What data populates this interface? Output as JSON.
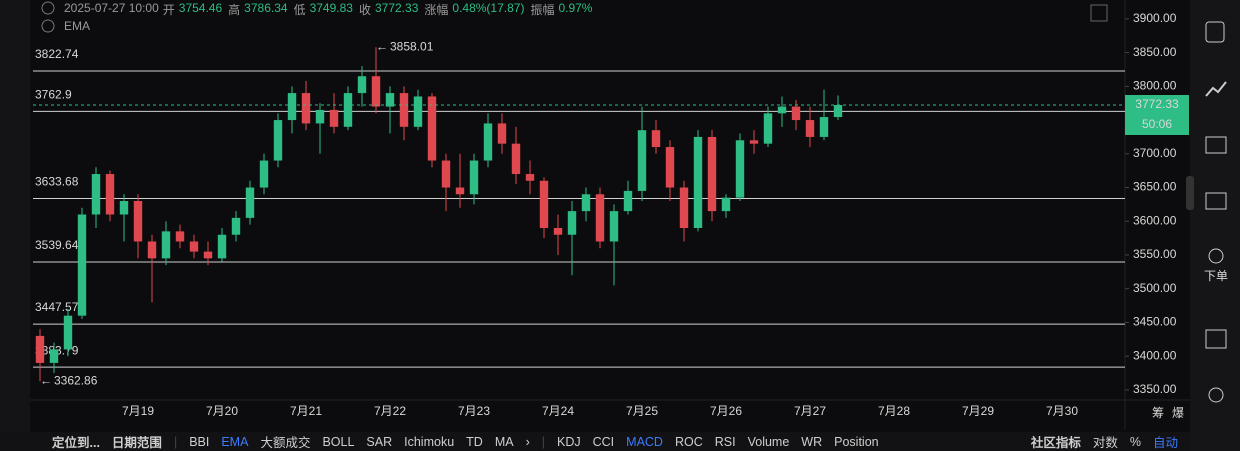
{
  "header": {
    "time": "2025-07-27 10:00",
    "stats": [
      {
        "label": "开",
        "value": 3754.46
      },
      {
        "label": "高",
        "value": 3786.34
      },
      {
        "label": "低",
        "value": 3749.83
      },
      {
        "label": "收",
        "value": 3772.33
      },
      {
        "label": "涨幅",
        "value": "0.48%(17.87)"
      },
      {
        "label": "振幅",
        "value": "0.97%"
      }
    ],
    "indicator": "EMA"
  },
  "chart_data": {
    "type": "candlestick",
    "categories": [
      null,
      null,
      null,
      null,
      null,
      null,
      null,
      "7月19",
      null,
      null,
      null,
      null,
      null,
      "7月20",
      null,
      null,
      null,
      null,
      null,
      "7月21",
      null,
      null,
      null,
      null,
      null,
      "7月22",
      null,
      null,
      null,
      null,
      null,
      "7月23",
      null,
      null,
      null,
      null,
      null,
      "7月24",
      null,
      null,
      null,
      null,
      null,
      "7月25",
      null,
      null,
      null,
      null,
      null,
      "7月26",
      null,
      null,
      null,
      null,
      null,
      "7月27",
      null,
      null,
      null,
      null,
      null,
      "7月28",
      null,
      null,
      null,
      null,
      null,
      "7月29",
      null,
      null,
      null,
      null,
      null,
      "7月30",
      null,
      null,
      null,
      null
    ],
    "open": [
      3430,
      3390,
      3410,
      3460,
      3610,
      3670,
      3610,
      3630,
      3570,
      3545,
      3585,
      3570,
      3555,
      3545,
      3580,
      3605,
      3650,
      3690,
      3750,
      3790,
      3745,
      3765,
      3740,
      3790,
      3815,
      3770,
      3790,
      3740,
      3785,
      3690,
      3650,
      3640,
      3690,
      3745,
      3715,
      3670,
      3660,
      3590,
      3580,
      3615,
      3640,
      3570,
      3615,
      3645,
      3735,
      3710,
      3650,
      3590,
      3725,
      3615,
      3635,
      3720,
      3715,
      3760,
      3770,
      3750,
      3725,
      3754.46,
      null,
      null,
      null,
      null,
      null,
      null,
      null,
      null,
      null,
      null,
      null,
      null,
      null,
      null,
      null,
      null,
      null,
      null,
      null,
      null
    ],
    "high": [
      3440,
      3420,
      3470,
      3620,
      3680,
      3675,
      3640,
      3640,
      3580,
      3600,
      3595,
      3580,
      3570,
      3590,
      3615,
      3660,
      3700,
      3760,
      3800,
      3808,
      3775,
      3790,
      3800,
      3830,
      3858.01,
      3800,
      3800,
      3795,
      3790,
      3700,
      3700,
      3700,
      3760,
      3760,
      3740,
      3690,
      3665,
      3610,
      3630,
      3650,
      3650,
      3625,
      3660,
      3770,
      3750,
      3720,
      3660,
      3735,
      3735,
      3640,
      3730,
      3735,
      3770,
      3785,
      3780,
      3770,
      3795,
      3786.34,
      null,
      null,
      null,
      null,
      null,
      null,
      null,
      null,
      null,
      null,
      null,
      null,
      null,
      null,
      null,
      null,
      null,
      null,
      null,
      null
    ],
    "low": [
      3362.86,
      3375,
      3400,
      3455,
      3590,
      3600,
      3570,
      3545,
      3480,
      3535,
      3560,
      3545,
      3535,
      3540,
      3570,
      3595,
      3640,
      3680,
      3730,
      3735,
      3700,
      3730,
      3735,
      3770,
      3760,
      3730,
      3720,
      3735,
      3680,
      3615,
      3620,
      3625,
      3680,
      3700,
      3655,
      3640,
      3575,
      3550,
      3520,
      3600,
      3560,
      3505,
      3610,
      3630,
      3700,
      3630,
      3570,
      3585,
      3600,
      3605,
      3630,
      3700,
      3710,
      3740,
      3735,
      3710,
      3720,
      3749.83,
      null,
      null,
      null,
      null,
      null,
      null,
      null,
      null,
      null,
      null,
      null,
      null,
      null,
      null,
      null,
      null,
      null,
      null,
      null,
      null
    ],
    "close": [
      3390,
      3410,
      3460,
      3610,
      3670,
      3610,
      3630,
      3570,
      3545,
      3585,
      3570,
      3555,
      3545,
      3580,
      3605,
      3650,
      3690,
      3750,
      3790,
      3745,
      3765,
      3740,
      3790,
      3815,
      3770,
      3790,
      3740,
      3785,
      3690,
      3650,
      3640,
      3690,
      3745,
      3715,
      3670,
      3660,
      3590,
      3580,
      3615,
      3640,
      3570,
      3615,
      3645,
      3735,
      3710,
      3650,
      3590,
      3725,
      3615,
      3635,
      3720,
      3715,
      3760,
      3770,
      3750,
      3725,
      3754.46,
      3772.33,
      null,
      null,
      null,
      null,
      null,
      null,
      null,
      null,
      null,
      null,
      null,
      null,
      null,
      null,
      null,
      null,
      null,
      null,
      null,
      null
    ],
    "up_color": "#2ebd85",
    "down_color": "#e0484f",
    "ylim": [
      3335,
      3928
    ],
    "yticks": [
      {
        "value": 3350,
        "label": "3350.00"
      },
      {
        "value": 3400,
        "label": "3400.00"
      },
      {
        "value": 3450,
        "label": "3450.00"
      },
      {
        "value": 3500,
        "label": "3500.00"
      },
      {
        "value": 3550,
        "label": "3550.00"
      },
      {
        "value": 3600,
        "label": "3600.00"
      },
      {
        "value": 3650,
        "label": "3650.00"
      },
      {
        "value": 3700,
        "label": "3700.00"
      },
      {
        "value": 3750,
        "label": "3750.00"
      },
      {
        "value": 3800,
        "label": "3800.00"
      },
      {
        "value": 3850,
        "label": "3850.00"
      },
      {
        "value": 3900,
        "label": "3900.00"
      }
    ],
    "levels": [
      3822.74,
      3762.9,
      3633.68,
      3539.64,
      3447.57,
      3383.79
    ],
    "annotations": [
      {
        "value": 3858.01,
        "of": "high"
      },
      {
        "value": 3362.86,
        "of": "low"
      }
    ],
    "last_price": 3772.33,
    "countdown": "50:06"
  },
  "axis_corner": [
    "筹",
    "爆"
  ],
  "sidebar": {
    "order": "下单"
  },
  "toolbar": {
    "left": [
      "定位到...",
      "日期范围"
    ],
    "main": [
      "BBI",
      "EMA",
      "大额成交",
      "BOLL",
      "SAR",
      "Ichimoku",
      "TD",
      "MA"
    ],
    "sub": [
      "KDJ",
      "CCI",
      "MACD",
      "ROC",
      "RSI",
      "Volume",
      "WR",
      "Position"
    ],
    "right": [
      "社区指标",
      "对数",
      "%",
      "自动"
    ],
    "active": [
      "EMA",
      "MACD",
      "自动"
    ]
  }
}
